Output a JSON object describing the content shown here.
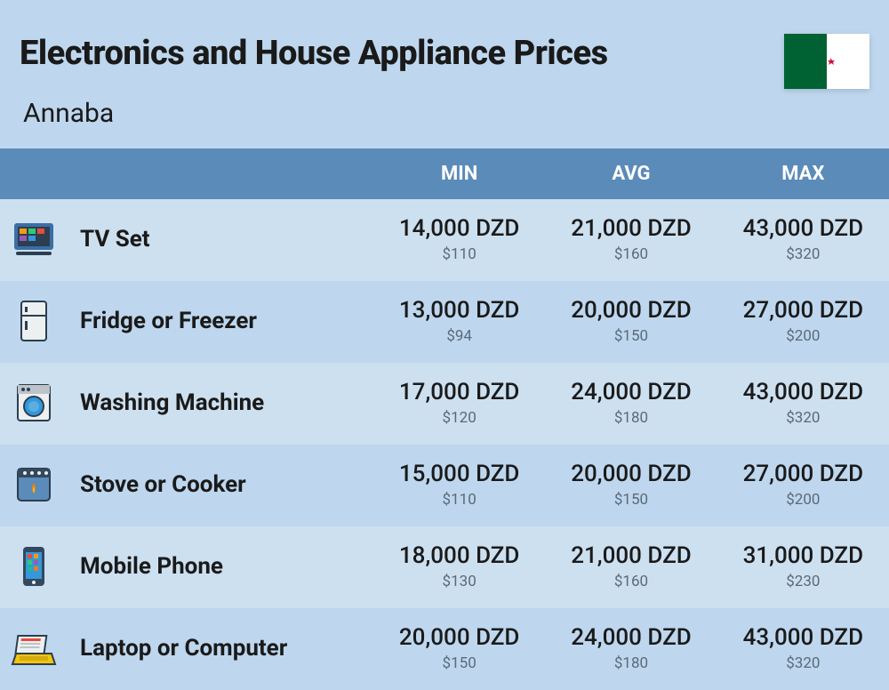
{
  "header": {
    "title": "Electronics and House Appliance Prices",
    "subtitle": "Annaba"
  },
  "colors": {
    "page_bg": "#bed7ee",
    "header_bg": "#5b8bb8",
    "header_text": "#ffffff",
    "row_even": "#cde0f0",
    "row_odd": "#bed7ee",
    "price_main": "#1a1a1a",
    "price_sub": "#5a6a78",
    "flag_green": "#006233",
    "flag_white": "#ffffff",
    "flag_red": "#d21034"
  },
  "columns": {
    "min": "MIN",
    "avg": "AVG",
    "max": "MAX"
  },
  "rows": [
    {
      "icon": "tv-icon",
      "name": "TV Set",
      "min_local": "14,000 DZD",
      "min_usd": "$110",
      "avg_local": "21,000 DZD",
      "avg_usd": "$160",
      "max_local": "43,000 DZD",
      "max_usd": "$320"
    },
    {
      "icon": "fridge-icon",
      "name": "Fridge or Freezer",
      "min_local": "13,000 DZD",
      "min_usd": "$94",
      "avg_local": "20,000 DZD",
      "avg_usd": "$150",
      "max_local": "27,000 DZD",
      "max_usd": "$200"
    },
    {
      "icon": "washer-icon",
      "name": "Washing Machine",
      "min_local": "17,000 DZD",
      "min_usd": "$120",
      "avg_local": "24,000 DZD",
      "avg_usd": "$180",
      "max_local": "43,000 DZD",
      "max_usd": "$320"
    },
    {
      "icon": "stove-icon",
      "name": "Stove or Cooker",
      "min_local": "15,000 DZD",
      "min_usd": "$110",
      "avg_local": "20,000 DZD",
      "avg_usd": "$150",
      "max_local": "27,000 DZD",
      "max_usd": "$200"
    },
    {
      "icon": "phone-icon",
      "name": "Mobile Phone",
      "min_local": "18,000 DZD",
      "min_usd": "$130",
      "avg_local": "21,000 DZD",
      "avg_usd": "$160",
      "max_local": "31,000 DZD",
      "max_usd": "$230"
    },
    {
      "icon": "laptop-icon",
      "name": "Laptop or Computer",
      "min_local": "20,000 DZD",
      "min_usd": "$150",
      "avg_local": "24,000 DZD",
      "avg_usd": "$180",
      "max_local": "43,000 DZD",
      "max_usd": "$320"
    }
  ]
}
